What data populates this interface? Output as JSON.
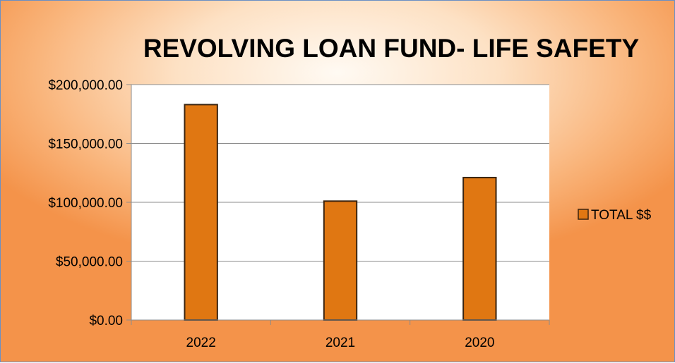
{
  "chart_data": {
    "type": "bar",
    "title": "REVOLVING LOAN FUND- LIFE SAFETY",
    "categories": [
      "2022",
      "2021",
      "2020"
    ],
    "series": [
      {
        "name": "TOTAL $$",
        "values": [
          183000,
          101000,
          121000
        ],
        "color": "#e07712"
      }
    ],
    "ylim": [
      0,
      200000
    ],
    "yticks": [
      0,
      50000,
      100000,
      150000,
      200000
    ],
    "ytick_labels": [
      "$0.00",
      "$50,000.00",
      "$100,000.00",
      "$150,000.00",
      "$200,000.00"
    ],
    "grid": true,
    "legend_position": "right",
    "xlabel": "",
    "ylabel": ""
  }
}
